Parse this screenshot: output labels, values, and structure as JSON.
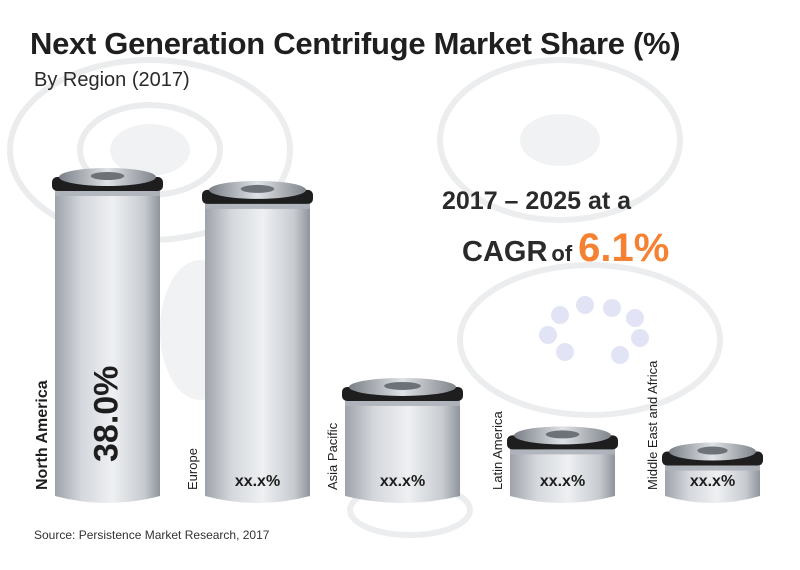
{
  "title": "Next Generation Centrifuge Market Share (%)",
  "subtitle": "By Region (2017)",
  "callout": {
    "line1": "2017 – 2025 at a",
    "cagr_word": "CAGR",
    "of_word": "of",
    "cagr_value": "6.1%"
  },
  "source": "Source: Persistence Market Research, 2017",
  "colors": {
    "accent": "#f58233",
    "text": "#2a2a2a",
    "cylinder_body": "#d4d7dc",
    "cylinder_cap": "#1e1e1e",
    "cylinder_lid": "#aeb3ba"
  },
  "chart_data": {
    "type": "bar",
    "categories": [
      "North America",
      "Europe",
      "Asia Pacific",
      "Latin America",
      "Middle East and Africa"
    ],
    "values": [
      38.0,
      null,
      null,
      null,
      null
    ],
    "value_labels": [
      "38.0%",
      "xx.x%",
      "xx.x%",
      "xx.x%",
      "xx.x%"
    ],
    "relative_heights": [
      1.0,
      0.96,
      0.35,
      0.2,
      0.15
    ],
    "bar_style": "centrifuge-cylinder"
  }
}
